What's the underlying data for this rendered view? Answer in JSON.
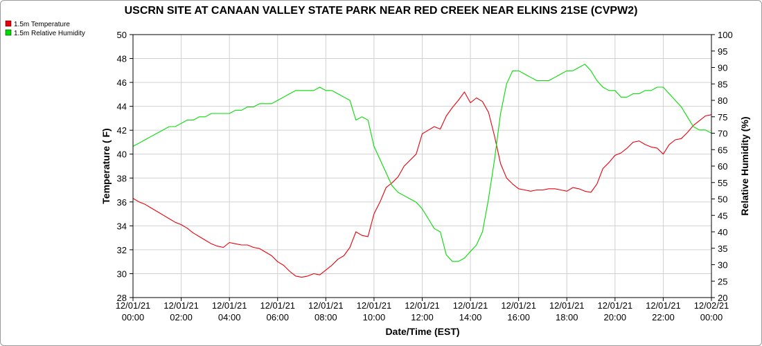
{
  "chart_data": {
    "type": "line",
    "title": "USCRN SITE AT CANAAN VALLEY STATE PARK NEAR RED CREEK NEAR ELKINS 21SE (CVPW2)",
    "xlabel": "Date/Time (EST)",
    "ylabel_left": "Temperature ( F)",
    "ylabel_right": "Relative Humidity (%)",
    "x_ticks": [
      {
        "date": "12/01/21",
        "time": "00:00",
        "hour": 0
      },
      {
        "date": "12/01/21",
        "time": "02:00",
        "hour": 2
      },
      {
        "date": "12/01/21",
        "time": "04:00",
        "hour": 4
      },
      {
        "date": "12/01/21",
        "time": "06:00",
        "hour": 6
      },
      {
        "date": "12/01/21",
        "time": "08:00",
        "hour": 8
      },
      {
        "date": "12/01/21",
        "time": "10:00",
        "hour": 10
      },
      {
        "date": "12/01/21",
        "time": "12:00",
        "hour": 12
      },
      {
        "date": "12/01/21",
        "time": "14:00",
        "hour": 14
      },
      {
        "date": "12/01/21",
        "time": "16:00",
        "hour": 16
      },
      {
        "date": "12/01/21",
        "time": "18:00",
        "hour": 18
      },
      {
        "date": "12/01/21",
        "time": "20:00",
        "hour": 20
      },
      {
        "date": "12/01/21",
        "time": "22:00",
        "hour": 22
      },
      {
        "date": "12/02/21",
        "time": "00:00",
        "hour": 24
      }
    ],
    "xlim": [
      0,
      24
    ],
    "ylim_left": [
      28,
      50
    ],
    "y_ticks_left": [
      28,
      30,
      32,
      34,
      36,
      38,
      40,
      42,
      44,
      46,
      48,
      50
    ],
    "ylim_right": [
      20,
      100
    ],
    "y_ticks_right": [
      20,
      25,
      30,
      35,
      40,
      45,
      50,
      55,
      60,
      65,
      70,
      75,
      80,
      85,
      90,
      95,
      100
    ],
    "grid": true,
    "legend": "top-left",
    "series": [
      {
        "name": "1.5m Temperature",
        "axis": "left",
        "color": "#e8000b",
        "x": [
          0,
          0.25,
          0.5,
          0.75,
          1,
          1.25,
          1.5,
          1.75,
          2,
          2.25,
          2.5,
          2.75,
          3,
          3.25,
          3.5,
          3.75,
          4,
          4.25,
          4.5,
          4.75,
          5,
          5.25,
          5.5,
          5.75,
          6,
          6.25,
          6.5,
          6.75,
          7,
          7.25,
          7.5,
          7.75,
          8,
          8.25,
          8.5,
          8.75,
          9,
          9.25,
          9.5,
          9.75,
          10,
          10.25,
          10.5,
          10.75,
          11,
          11.25,
          11.5,
          11.75,
          12,
          12.25,
          12.5,
          12.75,
          13,
          13.25,
          13.5,
          13.75,
          14,
          14.25,
          14.5,
          14.75,
          15,
          15.25,
          15.5,
          15.75,
          16,
          16.25,
          16.5,
          16.75,
          17,
          17.25,
          17.5,
          17.75,
          18,
          18.25,
          18.5,
          18.75,
          19,
          19.25,
          19.5,
          19.75,
          20,
          20.25,
          20.5,
          20.75,
          21,
          21.25,
          21.5,
          21.75,
          22,
          22.25,
          22.5,
          22.75,
          23,
          23.25,
          23.5,
          23.75,
          24
        ],
        "values": [
          36.3,
          36.0,
          35.8,
          35.5,
          35.2,
          34.9,
          34.6,
          34.3,
          34.1,
          33.8,
          33.4,
          33.1,
          32.8,
          32.5,
          32.3,
          32.2,
          32.6,
          32.5,
          32.4,
          32.4,
          32.2,
          32.1,
          31.8,
          31.5,
          31.0,
          30.7,
          30.2,
          29.8,
          29.7,
          29.8,
          30.0,
          29.9,
          30.3,
          30.7,
          31.2,
          31.5,
          32.2,
          33.5,
          33.2,
          33.1,
          35.0,
          36.0,
          37.2,
          37.6,
          38.1,
          39.0,
          39.5,
          40.0,
          41.7,
          42.0,
          42.3,
          42.1,
          43.2,
          43.9,
          44.5,
          45.2,
          44.3,
          44.7,
          44.4,
          43.5,
          41.5,
          39.2,
          38.0,
          37.5,
          37.1,
          37.0,
          36.9,
          37.0,
          37.0,
          37.1,
          37.1,
          37.0,
          36.9,
          37.2,
          37.1,
          36.9,
          36.8,
          37.5,
          38.8,
          39.3,
          39.9,
          40.1,
          40.5,
          41.0,
          41.1,
          40.8,
          40.6,
          40.5,
          40.0,
          40.8,
          41.2,
          41.3,
          41.8,
          42.4,
          42.8,
          43.2,
          43.3
        ]
      },
      {
        "name": "1.5m Relative Humidity",
        "axis": "right",
        "color": "#00dd00",
        "x": [
          0,
          0.25,
          0.5,
          0.75,
          1,
          1.25,
          1.5,
          1.75,
          2,
          2.25,
          2.5,
          2.75,
          3,
          3.25,
          3.5,
          3.75,
          4,
          4.25,
          4.5,
          4.75,
          5,
          5.25,
          5.5,
          5.75,
          6,
          6.25,
          6.5,
          6.75,
          7,
          7.25,
          7.5,
          7.75,
          8,
          8.25,
          8.5,
          8.75,
          9,
          9.25,
          9.5,
          9.75,
          10,
          10.25,
          10.5,
          10.75,
          11,
          11.25,
          11.5,
          11.75,
          12,
          12.25,
          12.5,
          12.75,
          13,
          13.25,
          13.5,
          13.75,
          14,
          14.25,
          14.5,
          14.75,
          15,
          15.25,
          15.5,
          15.75,
          16,
          16.25,
          16.5,
          16.75,
          17,
          17.25,
          17.5,
          17.75,
          18,
          18.25,
          18.5,
          18.75,
          19,
          19.25,
          19.5,
          19.75,
          20,
          20.25,
          20.5,
          20.75,
          21,
          21.25,
          21.5,
          21.75,
          22,
          22.25,
          22.5,
          22.75,
          23,
          23.25,
          23.5,
          23.75,
          24
        ],
        "values": [
          66,
          67,
          68,
          69,
          70,
          71,
          72,
          72,
          73,
          74,
          74,
          75,
          75,
          76,
          76,
          76,
          76,
          77,
          77,
          78,
          78,
          79,
          79,
          79,
          80,
          81,
          82,
          83,
          83,
          83,
          83,
          84,
          83,
          83,
          82,
          81,
          80,
          74,
          75,
          74,
          66,
          62,
          58,
          54,
          52,
          51,
          50,
          49,
          47,
          44,
          41,
          40,
          33,
          31,
          31,
          32,
          34,
          36,
          40,
          50,
          62,
          76,
          85,
          89,
          89,
          88,
          87,
          86,
          86,
          86,
          87,
          88,
          89,
          89,
          90,
          91,
          89,
          86,
          84,
          83,
          83,
          81,
          81,
          82,
          82,
          83,
          83,
          84,
          84,
          82,
          80,
          78,
          75,
          72,
          71,
          71,
          70
        ]
      }
    ]
  }
}
